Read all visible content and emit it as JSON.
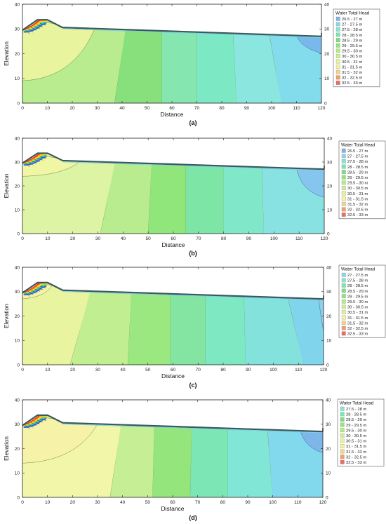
{
  "chart_data": [
    {
      "type": "heatmap",
      "caption": "(a)",
      "xlabel": "Distance",
      "ylabel": "Elevation",
      "xlim": [
        0,
        120
      ],
      "ylim": [
        0,
        40
      ],
      "xticks": [
        "0",
        "10",
        "20",
        "30",
        "40",
        "50",
        "60",
        "70",
        "80",
        "90",
        "100",
        "110",
        "120"
      ],
      "yticks": [
        "0",
        "10",
        "20",
        "30",
        "40"
      ],
      "legend_title": "Water Total Head",
      "legend": [
        "26.5 - 27 m",
        "27 - 27.5 m",
        "27.5 - 28 m",
        "28 - 28.5 m",
        "28.5 - 29 m",
        "29 - 29.5 m",
        "29.5 - 30 m",
        "30 - 30.5 m",
        "30.5 - 31 m",
        "31 - 31.5 m",
        "31.5 - 32 m",
        "32 - 32.5 m",
        "32.5 - 33 m"
      ],
      "bands": [
        {
          "x_bottom": 0,
          "x_top": 0,
          "color": "#b8ec8e"
        },
        {
          "x_bottom": 37,
          "x_top": 43,
          "color": "#88e07c"
        },
        {
          "x_bottom": 56,
          "x_top": 56,
          "color": "#86e6b0"
        },
        {
          "x_bottom": 70,
          "x_top": 70,
          "color": "#7ce8c4"
        },
        {
          "x_bottom": 86,
          "x_top": 84,
          "color": "#8ae6de"
        },
        {
          "x_bottom": 104,
          "x_top": 97,
          "color": "#82dcec"
        }
      ],
      "corner": {
        "x": 110,
        "y": 20,
        "color": "#79b8ec"
      },
      "yellow": {
        "x": 29,
        "y": 9,
        "color": "#e8f49e"
      }
    },
    {
      "type": "heatmap",
      "caption": "(b)",
      "xlabel": "Distance",
      "ylabel": "Elevation",
      "xlim": [
        0,
        120
      ],
      "ylim": [
        0,
        40
      ],
      "xticks": [
        "0",
        "10",
        "20",
        "30",
        "40",
        "50",
        "60",
        "70",
        "80",
        "90",
        "100",
        "110",
        "120"
      ],
      "yticks": [
        "0",
        "10",
        "20",
        "30",
        "40"
      ],
      "legend_title": "Water Total Head",
      "legend": [
        "26.5 - 27 m",
        "27 - 27.5 m",
        "27.5 - 28 m",
        "28 - 28.5 m",
        "28.5 - 29 m",
        "29 - 29.5 m",
        "29.5 - 30 m",
        "30 - 30.5 m",
        "30.5 - 31 m",
        "31 - 31.5 m",
        "31.5 - 32 m",
        "32 - 32.5 m",
        "32.5 - 33 m"
      ],
      "bands": [
        {
          "x_bottom": 0,
          "x_top": 0,
          "color": "#ddf4a4"
        },
        {
          "x_bottom": 31,
          "x_top": 39,
          "color": "#b8ec8e"
        },
        {
          "x_bottom": 50,
          "x_top": 52,
          "color": "#90e67a"
        },
        {
          "x_bottom": 65,
          "x_top": 65,
          "color": "#7de6a6"
        },
        {
          "x_bottom": 80,
          "x_top": 80,
          "color": "#80e8c8"
        },
        {
          "x_bottom": 96,
          "x_top": 95,
          "color": "#88e2e2"
        }
      ],
      "corner": {
        "x": 109,
        "y": 15,
        "color": "#86c6ee"
      },
      "yellow": {
        "x": 23,
        "y": 24,
        "color": "#f0f6a4"
      }
    },
    {
      "type": "heatmap",
      "caption": "(c)",
      "xlabel": "Distance",
      "ylabel": "Elevation",
      "xlim": [
        0,
        120
      ],
      "ylim": [
        0,
        40
      ],
      "xticks": [
        "0",
        "10",
        "20",
        "30",
        "40",
        "50",
        "60",
        "70",
        "80",
        "90",
        "100",
        "110",
        "120"
      ],
      "yticks": [
        "0",
        "10",
        "20",
        "30",
        "40"
      ],
      "legend_title": "Water Total Head",
      "legend": [
        "27 - 27.5 m",
        "27.5 - 28 m",
        "28 - 28.5 m",
        "28.5 - 29 m",
        "29 - 29.5 m",
        "29.5 - 30 m",
        "30 - 30.5 m",
        "30.5 - 31 m",
        "31 - 31.5 m",
        "31.5 - 32 m",
        "32 - 32.5 m",
        "32.5 - 33 m"
      ],
      "bands": [
        {
          "x_bottom": 0,
          "x_top": 0,
          "color": "#e8f4a0"
        },
        {
          "x_bottom": 19,
          "x_top": 30,
          "color": "#c2ee92"
        },
        {
          "x_bottom": 42,
          "x_top": 44,
          "color": "#9ce880"
        },
        {
          "x_bottom": 59,
          "x_top": 59,
          "color": "#84e4a2"
        },
        {
          "x_bottom": 73,
          "x_top": 73,
          "color": "#7ee8c2"
        },
        {
          "x_bottom": 89,
          "x_top": 88,
          "color": "#84e2dc"
        },
        {
          "x_bottom": 112,
          "x_top": 103,
          "color": "#80d4ec"
        }
      ],
      "corner": {
        "x": 118,
        "y": 10,
        "color": "#92ccee"
      },
      "yellow": {
        "x": 12,
        "y": 27,
        "color": "#f4f4a6"
      }
    },
    {
      "type": "heatmap",
      "caption": "(d)",
      "xlabel": "Distance",
      "ylabel": "Elevation",
      "xlim": [
        0,
        120
      ],
      "ylim": [
        0,
        40
      ],
      "xticks": [
        "0",
        "10",
        "20",
        "30",
        "40",
        "50",
        "60",
        "70",
        "80",
        "90",
        "100",
        "110",
        "120"
      ],
      "yticks": [
        "0",
        "10",
        "20",
        "30",
        "40"
      ],
      "legend_title": "Water Total Head",
      "legend": [
        "27.5 - 28 m",
        "28 - 28.5 m",
        "28.5 - 29 m",
        "29 - 29.5 m",
        "29.5 - 30 m",
        "30 - 30.5 m",
        "30.5 - 31 m",
        "31 - 31.5 m",
        "31.5 - 32 m",
        "32 - 32.5 m",
        "32.5 - 33 m"
      ],
      "bands": [
        {
          "x_bottom": 0,
          "x_top": 0,
          "color": "#f2f6a8"
        },
        {
          "x_bottom": 35,
          "x_top": 41,
          "color": "#c6ee94"
        },
        {
          "x_bottom": 52,
          "x_top": 53,
          "color": "#94e67c"
        },
        {
          "x_bottom": 67,
          "x_top": 68,
          "color": "#7ce6b4"
        },
        {
          "x_bottom": 82,
          "x_top": 82,
          "color": "#82e6d6"
        },
        {
          "x_bottom": 100,
          "x_top": 97,
          "color": "#82d8ec"
        }
      ],
      "corner": {
        "x": 111,
        "y": 18,
        "color": "#7fb6ea"
      },
      "yellow": {
        "x": 30,
        "y": 14,
        "color": "#f6f2a8"
      }
    }
  ],
  "legend_colors_full": [
    "#7eb3e6",
    "#8bd6ea",
    "#86e6d2",
    "#7ae6b0",
    "#7bdc8c",
    "#94e676",
    "#b4ec86",
    "#cfef8e",
    "#e6f39c",
    "#f4f29e",
    "#f4d584",
    "#f0a069",
    "#ee6a6a"
  ],
  "slope_layers": [
    "#ff2020",
    "#ff9020",
    "#ffe020",
    "#60d060",
    "#30b0e0",
    "#4060e0"
  ]
}
